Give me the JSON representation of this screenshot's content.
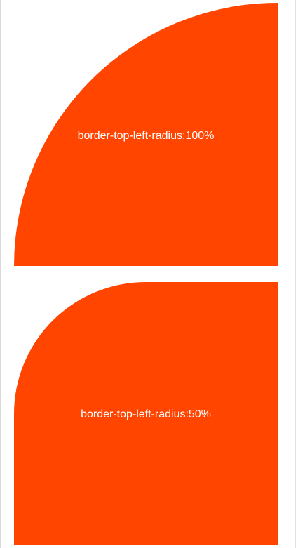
{
  "colors": {
    "box_fill": "#ff4500",
    "label_text": "#ffffff",
    "background": "#ffffff"
  },
  "boxes": [
    {
      "label": "border-top-left-radius:100%"
    },
    {
      "label": "border-top-left-radius:50%"
    }
  ]
}
